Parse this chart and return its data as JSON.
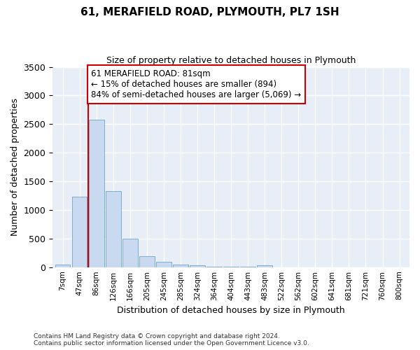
{
  "title_line1": "61, MERAFIELD ROAD, PLYMOUTH, PL7 1SH",
  "title_line2": "Size of property relative to detached houses in Plymouth",
  "xlabel": "Distribution of detached houses by size in Plymouth",
  "ylabel": "Number of detached properties",
  "bar_labels": [
    "7sqm",
    "47sqm",
    "86sqm",
    "126sqm",
    "166sqm",
    "205sqm",
    "245sqm",
    "285sqm",
    "324sqm",
    "364sqm",
    "404sqm",
    "443sqm",
    "483sqm",
    "522sqm",
    "562sqm",
    "602sqm",
    "641sqm",
    "681sqm",
    "721sqm",
    "760sqm",
    "800sqm"
  ],
  "bar_values": [
    50,
    1230,
    2580,
    1330,
    500,
    190,
    100,
    50,
    30,
    10,
    5,
    3,
    30,
    0,
    0,
    0,
    0,
    0,
    0,
    0,
    0
  ],
  "bar_color": "#c8d9f0",
  "bar_edge_color": "#7aaed6",
  "highlight_line_color": "#cc0000",
  "annotation_text": "61 MERAFIELD ROAD: 81sqm\n← 15% of detached houses are smaller (894)\n84% of semi-detached houses are larger (5,069) →",
  "annotation_box_color": "#cc0000",
  "annotation_text_color": "#000000",
  "ylim": [
    0,
    3500
  ],
  "background_color": "#e8eef8",
  "grid_color": "#ffffff",
  "footer_line1": "Contains HM Land Registry data © Crown copyright and database right 2024.",
  "footer_line2": "Contains public sector information licensed under the Open Government Licence v3.0."
}
